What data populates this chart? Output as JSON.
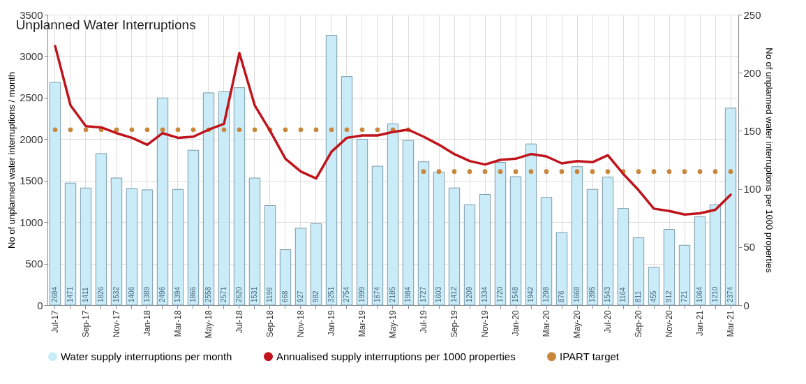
{
  "chart_data": {
    "type": "bar",
    "title": "Unplanned Water Interruptions",
    "ylabel": "No of unplanned water interruptions / month",
    "y2label": "No of unplanned water interruptions per 1000 properties",
    "categories": [
      "Jul-17",
      null,
      "Sep-17",
      null,
      "Nov-17",
      null,
      "Jan-18",
      null,
      "Mar-18",
      null,
      "May-18",
      null,
      "Jul-18",
      null,
      "Sep-18",
      null,
      "Nov-18",
      null,
      "Jan-19",
      null,
      "Mar-19",
      null,
      "May-19",
      null,
      "Jul-19",
      null,
      "Sep-19",
      null,
      "Nov-19",
      null,
      "Jan-20",
      null,
      "Mar-20",
      null,
      "May-20",
      null,
      "Jul-20",
      null,
      "Sep-20",
      null,
      "Nov-20",
      null,
      "Jan-21",
      null,
      "Mar-21"
    ],
    "series": [
      {
        "name": "Water supply interruptions per month",
        "color": "#c9ecf8",
        "values": [
          2684,
          1471,
          1411,
          1826,
          1532,
          1406,
          1389,
          2496,
          1394,
          1866,
          2558,
          2571,
          2620,
          1531,
          1199,
          668,
          927,
          982,
          3251,
          2754,
          1999,
          1674,
          2185,
          1984,
          1727,
          1603,
          1412,
          1209,
          1334,
          1720,
          1548,
          1942,
          1298,
          876,
          1668,
          1395,
          1543,
          1164,
          811,
          455,
          912,
          721,
          1064,
          1210,
          2374
        ],
        "value_labels": [
          "2684",
          "1471",
          "1411",
          "1826",
          "1532",
          "1406",
          "1389",
          "2496",
          "1394",
          "1866",
          "2558",
          "2571",
          "2620",
          "1531",
          "1199",
          "668",
          "927",
          "982",
          "3251",
          "2754",
          "1999",
          "1674",
          "2185",
          "1984",
          "1727",
          "1603",
          "1412",
          "1209",
          "1334",
          "1720",
          "1548",
          "1942",
          "1298",
          "876",
          "1668",
          "1395",
          "1543",
          "1164",
          "811",
          "455",
          "912",
          "721",
          "1064",
          "1210",
          "2374"
        ]
      },
      {
        "name": "Annualised supply interruptions per 1000 properties",
        "type": "line",
        "axis": "y2",
        "color": "#c0141c",
        "marker": "none",
        "line_style": "solid",
        "values": [
          223,
          172,
          154,
          153,
          148,
          144,
          138,
          148,
          144,
          145,
          151,
          156,
          217,
          172,
          150,
          126,
          115,
          109,
          132,
          144,
          146,
          146,
          149,
          151,
          145,
          138,
          130,
          124,
          121,
          125,
          126,
          130,
          128,
          122,
          124,
          123,
          129,
          113,
          99,
          83,
          81,
          78,
          79,
          82,
          95
        ]
      },
      {
        "name": "IPART target",
        "type": "scatter",
        "axis": "y2",
        "color": "#c8873a",
        "marker": "circle",
        "values": [
          151,
          151,
          151,
          151,
          151,
          151,
          151,
          151,
          151,
          151,
          151,
          151,
          151,
          151,
          151,
          151,
          151,
          151,
          151,
          151,
          151,
          151,
          151,
          151,
          115,
          115,
          115,
          115,
          115,
          115,
          115,
          115,
          115,
          115,
          115,
          115,
          115,
          115,
          115,
          115,
          115,
          115,
          115,
          115,
          115
        ]
      }
    ],
    "ylim": [
      0,
      3500
    ],
    "yticks": [
      0,
      500,
      1000,
      1500,
      2000,
      2500,
      3000,
      3500
    ],
    "y2lim": [
      0,
      250
    ],
    "y2ticks": [
      0,
      50,
      100,
      150,
      200,
      250
    ],
    "grid": true,
    "legend": "bottom"
  }
}
